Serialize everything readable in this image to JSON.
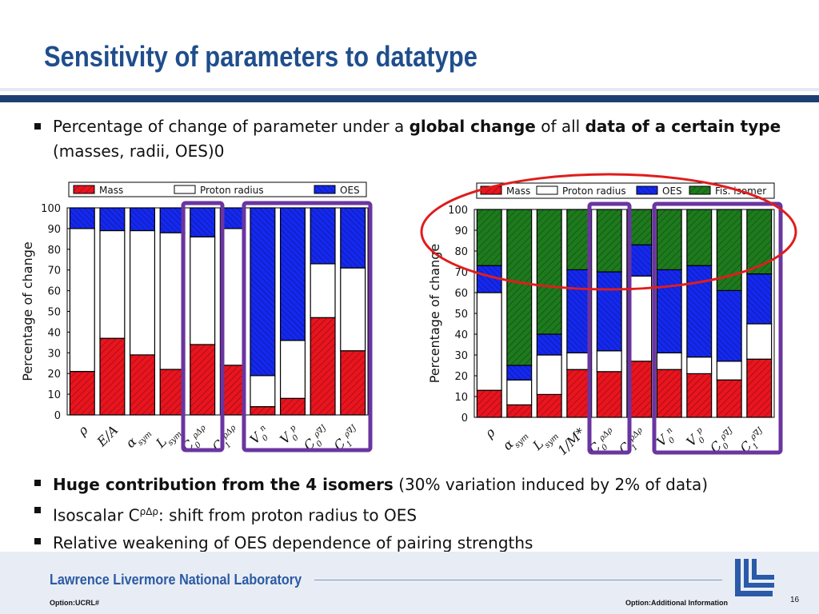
{
  "slide": {
    "title": "Sensitivity of parameters to datatype",
    "intro_bullet": {
      "t1": "Percentage of change of parameter under a ",
      "b1": "global change",
      "t2": " of all ",
      "b2": "data of a certain type",
      "t3": " (masses, radii, OES)0"
    },
    "bullets": [
      {
        "bold": "Huge contribution from the 4 isomers",
        "text": " (30% variation induced by 2% of data)"
      },
      {
        "text": "Isoscalar C",
        "sup": "ρΔρ",
        "text2": ": shift from proton radius to OES"
      },
      {
        "text": "Relative weakening of OES dependence of pairing strengths"
      }
    ]
  },
  "footer": {
    "lab_name": "Lawrence Livermore National Laboratory",
    "left_note": "Option:UCRL#",
    "right_note": "Option:Additional Information",
    "page_number": "16"
  },
  "colors": {
    "mass": "#e8141e",
    "radius": "#ffffff",
    "oes": "#1428ee",
    "fis": "#1d7a1d",
    "highlight_purple": "#6a35a0",
    "highlight_red": "#e01c1c",
    "title_blue": "#1f4e8c"
  },
  "chart_data": [
    {
      "type": "bar",
      "stacked": true,
      "ylabel": "Percentage of change",
      "ylim": [
        0,
        100
      ],
      "yticks": [
        "0",
        "10",
        "20",
        "30",
        "40",
        "50",
        "60",
        "70",
        "80",
        "90",
        "100"
      ],
      "legend": [
        "Mass",
        "Proton radius",
        "OES"
      ],
      "categories": [
        "ρ",
        "E/A",
        "α_sym",
        "L_sym",
        "C0^{ρΔρ}",
        "C1^{ρΔρ}",
        "V0^n",
        "V0^p",
        "C0^{ρ∇J}",
        "C1^{ρ∇J}"
      ],
      "series": [
        {
          "name": "Mass",
          "values": [
            21,
            37,
            29,
            22,
            34,
            24,
            4,
            8,
            47,
            31
          ]
        },
        {
          "name": "Proton radius",
          "values": [
            69,
            52,
            60,
            66,
            52,
            66,
            15,
            28,
            26,
            40
          ]
        },
        {
          "name": "OES",
          "values": [
            10,
            11,
            11,
            12,
            14,
            10,
            81,
            64,
            27,
            29
          ]
        }
      ]
    },
    {
      "type": "bar",
      "stacked": true,
      "ylabel": "Percentage of change",
      "ylim": [
        0,
        100
      ],
      "yticks": [
        "0",
        "10",
        "20",
        "30",
        "40",
        "50",
        "60",
        "70",
        "80",
        "90",
        "100"
      ],
      "legend": [
        "Mass",
        "Proton radius",
        "OES",
        "Fis. isomer"
      ],
      "categories": [
        "ρ",
        "α_sym",
        "L_sym",
        "1/M*",
        "C0^{ρΔρ}",
        "C1^{ρΔρ}",
        "V0^n",
        "V0^p",
        "C0^{ρ∇J}",
        "C1^{ρ∇J}"
      ],
      "series": [
        {
          "name": "Mass",
          "values": [
            13,
            6,
            11,
            23,
            22,
            27,
            23,
            21,
            18,
            28
          ]
        },
        {
          "name": "Proton radius",
          "values": [
            47,
            12,
            19,
            8,
            10,
            41,
            8,
            8,
            9,
            17
          ]
        },
        {
          "name": "OES",
          "values": [
            13,
            7,
            10,
            40,
            38,
            15,
            40,
            44,
            34,
            24
          ]
        },
        {
          "name": "Fis. isomer",
          "values": [
            27,
            75,
            60,
            29,
            30,
            17,
            29,
            27,
            39,
            31
          ]
        }
      ]
    }
  ]
}
